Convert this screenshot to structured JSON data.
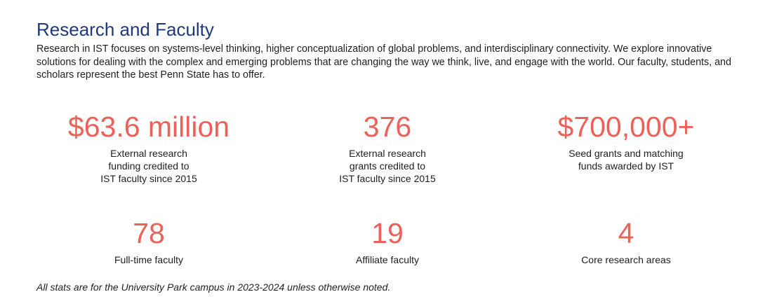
{
  "section": {
    "heading": "Research and Faculty",
    "intro": "Research in IST focuses on systems-level thinking, higher conceptualization of global problems, and interdisciplinary connectivity. We explore innovative solutions for dealing with the complex and emerging problems that are changing the way we think, live, and engage with the world. Our faculty, students, and scholars represent the best Penn State has to offer."
  },
  "stats": [
    {
      "value": "$63.6 million",
      "label_lines": [
        "External research",
        "funding credited to",
        "IST faculty since 2015"
      ]
    },
    {
      "value": "376",
      "label_lines": [
        "External research",
        "grants credited to",
        "IST faculty since 2015"
      ]
    },
    {
      "value": "$700,000+",
      "label_lines": [
        "Seed grants and matching",
        "funds awarded by IST"
      ]
    },
    {
      "value": "78",
      "label_lines": [
        "Full-time faculty"
      ]
    },
    {
      "value": "19",
      "label_lines": [
        "Affiliate faculty"
      ]
    },
    {
      "value": "4",
      "label_lines": [
        "Core research areas"
      ]
    }
  ],
  "footnote": "All stats are for the University Park campus in 2023-2024 unless otherwise noted.",
  "colors": {
    "heading": "#1e3a7b",
    "stat_value": "#ee605a",
    "body_text": "#1e1e1e"
  }
}
